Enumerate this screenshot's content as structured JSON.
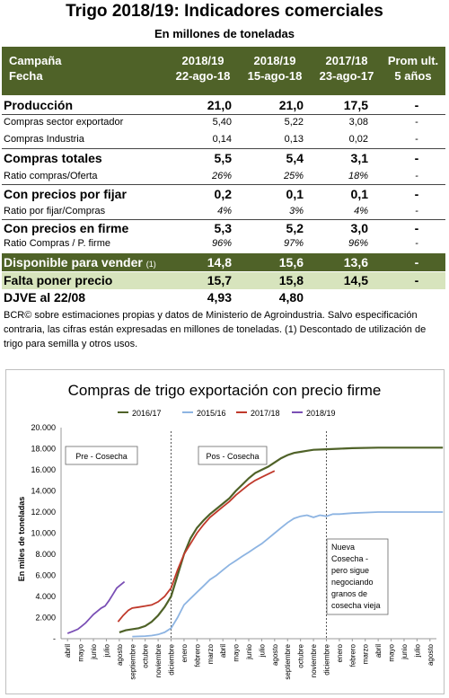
{
  "title": "Trigo 2018/19: Indicadores comerciales",
  "subtitle": "En millones de toneladas",
  "table": {
    "header": {
      "col0": [
        "Campaña",
        "Fecha"
      ],
      "col1": [
        "2018/19",
        "22-ago-18"
      ],
      "col2": [
        "2018/19",
        "15-ago-18"
      ],
      "col3": [
        "2017/18",
        "23-ago-17"
      ],
      "col4": [
        "Prom ult.",
        "5 años"
      ]
    },
    "rows": [
      {
        "label": "Producción",
        "v1": "21,0",
        "v2": "21,0",
        "v3": "17,5",
        "v4": "-"
      },
      {
        "label": "Compras sector exportador",
        "v1": "5,40",
        "v2": "5,22",
        "v3": "3,08",
        "v4": "-"
      },
      {
        "label": "Compras Industria",
        "v1": "0,14",
        "v2": "0,13",
        "v3": "0,02",
        "v4": "-"
      },
      {
        "label": "Compras totales",
        "v1": "5,5",
        "v2": "5,4",
        "v3": "3,1",
        "v4": "-"
      },
      {
        "label": "Ratio compras/Oferta",
        "v1": "26%",
        "v2": "25%",
        "v3": "18%",
        "v4": "-"
      },
      {
        "label": "Con precios por fijar",
        "v1": "0,2",
        "v2": "0,1",
        "v3": "0,1",
        "v4": "-"
      },
      {
        "label": "Ratio por fijar/Compras",
        "v1": "4%",
        "v2": "3%",
        "v3": "4%",
        "v4": "-"
      },
      {
        "label": "Con precios en firme",
        "v1": "5,3",
        "v2": "5,2",
        "v3": "3,0",
        "v4": "-"
      },
      {
        "label": "Ratio Compras / P. firme",
        "v1": "96%",
        "v2": "97%",
        "v3": "96%",
        "v4": "-"
      },
      {
        "label": "Disponible para vender",
        "label_note": "(1)",
        "v1": "14,8",
        "v2": "15,6",
        "v3": "13,6",
        "v4": "-"
      },
      {
        "label": "Falta poner precio",
        "v1": "15,7",
        "v2": "15,8",
        "v3": "14,5",
        "v4": "-"
      },
      {
        "label": "DJVE al 22/08",
        "v1": "4,93",
        "v2": "4,80",
        "v3": "",
        "v4": ""
      }
    ]
  },
  "note": "BCR© sobre estimaciones propias y datos de Ministerio de Agroindustria. Salvo especificación contraria, las cifras están expresadas en millones de toneladas. (1) Descontado de utilización de trigo para semilla y otros usos.",
  "colors": {
    "header_bg": "#4f6228",
    "highlight_light": "#d7e4bd",
    "s2016": "#4f6228",
    "s2015": "#8db4e2",
    "s2017": "#c0392b",
    "s2018": "#7a4fb5"
  },
  "chart_data": {
    "type": "line",
    "title": "Compras de trigo exportación con precio firme",
    "ylabel": "En miles de toneladas",
    "ylim": [
      0,
      20000
    ],
    "yticks": [
      "-",
      "2.000",
      "4.000",
      "6.000",
      "8.000",
      "10.000",
      "12.000",
      "14.000",
      "16.000",
      "18.000",
      "20.000"
    ],
    "month_labels": [
      "abril",
      "mayo",
      "junio",
      "julio",
      "agosto",
      "septiembre",
      "octubre",
      "noviembre",
      "diciembre",
      "enero",
      "febrero",
      "marzo",
      "abril",
      "mayo",
      "junio",
      "julio",
      "agosto",
      "septiembre",
      "octubre",
      "noviembre",
      "diciembre",
      "enero",
      "febrero",
      "marzo",
      "abril",
      "mayo",
      "junio",
      "julio",
      "agosto"
    ],
    "annotations": {
      "pre": "Pre - Cosecha",
      "pos": "Pos - Cosecha",
      "nueva": [
        "Nueva",
        "Cosecha -",
        "pero sigue",
        "negociando",
        "granos de",
        "cosecha vieja"
      ]
    },
    "series": [
      {
        "name": "2016/17",
        "points": [
          [
            4.0,
            600
          ],
          [
            4.5,
            800
          ],
          [
            5.0,
            900
          ],
          [
            5.5,
            1000
          ],
          [
            6.0,
            1200
          ],
          [
            6.5,
            1600
          ],
          [
            7.0,
            2200
          ],
          [
            7.5,
            3000
          ],
          [
            8.0,
            4000
          ],
          [
            8.5,
            6000
          ],
          [
            9.0,
            8000
          ],
          [
            9.5,
            9500
          ],
          [
            10.0,
            10500
          ],
          [
            10.5,
            11200
          ],
          [
            11.0,
            11800
          ],
          [
            11.5,
            12300
          ],
          [
            12.0,
            12800
          ],
          [
            12.5,
            13300
          ],
          [
            13.0,
            14000
          ],
          [
            13.5,
            14600
          ],
          [
            14.0,
            15200
          ],
          [
            14.5,
            15700
          ],
          [
            15.0,
            16000
          ],
          [
            15.5,
            16300
          ],
          [
            16.0,
            16700
          ],
          [
            16.5,
            17100
          ],
          [
            17.0,
            17400
          ],
          [
            17.5,
            17600
          ],
          [
            18.0,
            17700
          ],
          [
            18.5,
            17800
          ],
          [
            19.0,
            17900
          ],
          [
            20.0,
            17950
          ],
          [
            21.0,
            18000
          ],
          [
            22.0,
            18050
          ],
          [
            24.0,
            18100
          ],
          [
            27.0,
            18100
          ],
          [
            29.0,
            18100
          ]
        ]
      },
      {
        "name": "2015/16",
        "points": [
          [
            5.0,
            200
          ],
          [
            5.5,
            220
          ],
          [
            6.0,
            250
          ],
          [
            6.5,
            300
          ],
          [
            7.0,
            400
          ],
          [
            7.5,
            600
          ],
          [
            8.0,
            1000
          ],
          [
            8.5,
            2000
          ],
          [
            9.0,
            3200
          ],
          [
            9.5,
            3800
          ],
          [
            10.0,
            4400
          ],
          [
            10.5,
            5000
          ],
          [
            11.0,
            5600
          ],
          [
            11.5,
            6000
          ],
          [
            12.0,
            6500
          ],
          [
            12.5,
            7000
          ],
          [
            13.0,
            7400
          ],
          [
            13.5,
            7800
          ],
          [
            14.0,
            8200
          ],
          [
            14.5,
            8600
          ],
          [
            15.0,
            9000
          ],
          [
            15.5,
            9500
          ],
          [
            16.0,
            10000
          ],
          [
            16.5,
            10500
          ],
          [
            17.0,
            11000
          ],
          [
            17.5,
            11400
          ],
          [
            18.0,
            11600
          ],
          [
            18.5,
            11700
          ],
          [
            19.0,
            11500
          ],
          [
            19.5,
            11700
          ],
          [
            20.0,
            11600
          ],
          [
            20.5,
            11800
          ],
          [
            21.0,
            11800
          ],
          [
            22.0,
            11900
          ],
          [
            24.0,
            12000
          ],
          [
            27.0,
            12000
          ],
          [
            29.0,
            12000
          ]
        ]
      },
      {
        "name": "2017/18",
        "points": [
          [
            3.9,
            1600
          ],
          [
            4.3,
            2200
          ],
          [
            4.7,
            2700
          ],
          [
            5.0,
            2900
          ],
          [
            5.5,
            3000
          ],
          [
            6.0,
            3100
          ],
          [
            6.5,
            3200
          ],
          [
            7.0,
            3500
          ],
          [
            7.5,
            4000
          ],
          [
            8.0,
            4800
          ],
          [
            8.5,
            6500
          ],
          [
            9.0,
            8000
          ],
          [
            9.5,
            9000
          ],
          [
            10.0,
            10000
          ],
          [
            10.5,
            10800
          ],
          [
            11.0,
            11500
          ],
          [
            11.5,
            12000
          ],
          [
            12.0,
            12500
          ],
          [
            12.5,
            13000
          ],
          [
            13.0,
            13600
          ],
          [
            13.5,
            14100
          ],
          [
            14.0,
            14600
          ],
          [
            14.5,
            15000
          ],
          [
            15.0,
            15300
          ],
          [
            15.5,
            15600
          ],
          [
            16.0,
            15900
          ]
        ]
      },
      {
        "name": "2018/19",
        "points": [
          [
            0.0,
            500
          ],
          [
            0.4,
            700
          ],
          [
            0.8,
            900
          ],
          [
            1.1,
            1200
          ],
          [
            1.4,
            1500
          ],
          [
            1.7,
            1900
          ],
          [
            2.0,
            2300
          ],
          [
            2.3,
            2600
          ],
          [
            2.6,
            2900
          ],
          [
            2.9,
            3100
          ],
          [
            3.2,
            3600
          ],
          [
            3.5,
            4200
          ],
          [
            3.8,
            4800
          ],
          [
            4.1,
            5100
          ],
          [
            4.4,
            5400
          ]
        ]
      }
    ]
  }
}
